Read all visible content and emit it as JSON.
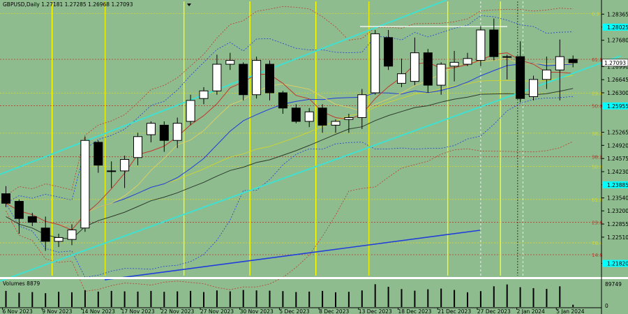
{
  "header": {
    "symbol_info": "GBPUSD,Daily  1.27181 1.27285 1.26968 1.27093"
  },
  "volume_panel": {
    "label": "Volumes 8879",
    "max_label": "89749",
    "zero_label": "0"
  },
  "colors": {
    "background": "#8fbc8f",
    "bull_body": "#ffffff",
    "bear_body": "#000000",
    "channel": "#40e0d0",
    "fib_red": "#c0392b",
    "fib_yellow": "#d8d820",
    "session_line": "#ffff00",
    "trend_blue": "#1f3ddb"
  },
  "chart_data": {
    "type": "candlestick",
    "symbol": "GBPUSD",
    "timeframe": "Daily",
    "ylim": [
      1.215,
      1.287
    ],
    "price_ticks": [
      "1.28365",
      "1.28025",
      "1.27680",
      "1.26990",
      "1.26645",
      "1.26300",
      "1.25955",
      "1.25265",
      "1.24920",
      "1.24575",
      "1.24230",
      "1.23885",
      "1.23540",
      "1.23200",
      "1.22855",
      "1.22510",
      "1.21820"
    ],
    "x_labels": [
      "6 Nov 2023",
      "9 Nov 2023",
      "14 Nov 2023",
      "17 Nov 2023",
      "22 Nov 2023",
      "27 Nov 2023",
      "30 Nov 2023",
      "5 Dec 2023",
      "8 Dec 2023",
      "13 Dec 2023",
      "18 Dec 2023",
      "21 Dec 2023",
      "27 Dec 2023",
      "2 Jan 2024",
      "5 Jan 2024"
    ],
    "current_price_label": "1.27093",
    "highlighted_levels": [
      "1.28025",
      "1.25955",
      "1.23885",
      "1.21820"
    ],
    "fib_levels": [
      {
        "label": "0.0",
        "price": 1.2838,
        "color": "yellow"
      },
      {
        "label": "61.8",
        "price": 1.2718,
        "color": "red"
      },
      {
        "label": "23.6",
        "price": 1.2629,
        "color": "yellow"
      },
      {
        "label": "50.0",
        "price": 1.2596,
        "color": "red"
      },
      {
        "label": "38.2",
        "price": 1.2524,
        "color": "yellow"
      },
      {
        "label": "38.2",
        "price": 1.2462,
        "color": "red"
      },
      {
        "label": "50.0",
        "price": 1.2437,
        "color": "yellow"
      },
      {
        "label": "61.8",
        "price": 1.235,
        "color": "yellow"
      },
      {
        "label": "23.6",
        "price": 1.229,
        "color": "red"
      },
      {
        "label": "76.4",
        "price": 1.2236,
        "color": "yellow"
      },
      {
        "label": "14.6",
        "price": 1.2205,
        "color": "red"
      }
    ],
    "candles": [
      {
        "o": 1.2365,
        "h": 1.2385,
        "l": 1.233,
        "c": 1.234
      },
      {
        "o": 1.2345,
        "h": 1.235,
        "l": 1.226,
        "c": 1.23
      },
      {
        "o": 1.2305,
        "h": 1.2315,
        "l": 1.228,
        "c": 1.229
      },
      {
        "o": 1.2275,
        "h": 1.2305,
        "l": 1.2215,
        "c": 1.224
      },
      {
        "o": 1.224,
        "h": 1.226,
        "l": 1.2225,
        "c": 1.225
      },
      {
        "o": 1.2245,
        "h": 1.2285,
        "l": 1.223,
        "c": 1.227
      },
      {
        "o": 1.2275,
        "h": 1.2515,
        "l": 1.2265,
        "c": 1.2505
      },
      {
        "o": 1.25,
        "h": 1.2505,
        "l": 1.242,
        "c": 1.244
      },
      {
        "o": 1.2425,
        "h": 1.245,
        "l": 1.238,
        "c": 1.2425
      },
      {
        "o": 1.2425,
        "h": 1.2465,
        "l": 1.238,
        "c": 1.2455
      },
      {
        "o": 1.246,
        "h": 1.2525,
        "l": 1.244,
        "c": 1.2515
      },
      {
        "o": 1.252,
        "h": 1.2555,
        "l": 1.25,
        "c": 1.255
      },
      {
        "o": 1.2545,
        "h": 1.2555,
        "l": 1.2475,
        "c": 1.2505
      },
      {
        "o": 1.2505,
        "h": 1.2565,
        "l": 1.2485,
        "c": 1.255
      },
      {
        "o": 1.2555,
        "h": 1.2625,
        "l": 1.2545,
        "c": 1.261
      },
      {
        "o": 1.2615,
        "h": 1.2645,
        "l": 1.26,
        "c": 1.2635
      },
      {
        "o": 1.2635,
        "h": 1.273,
        "l": 1.2625,
        "c": 1.2705
      },
      {
        "o": 1.2705,
        "h": 1.2735,
        "l": 1.269,
        "c": 1.2715
      },
      {
        "o": 1.2705,
        "h": 1.271,
        "l": 1.261,
        "c": 1.2625
      },
      {
        "o": 1.2625,
        "h": 1.2725,
        "l": 1.2615,
        "c": 1.2715
      },
      {
        "o": 1.2705,
        "h": 1.2715,
        "l": 1.261,
        "c": 1.263
      },
      {
        "o": 1.263,
        "h": 1.2635,
        "l": 1.2575,
        "c": 1.259
      },
      {
        "o": 1.259,
        "h": 1.26,
        "l": 1.255,
        "c": 1.2555
      },
      {
        "o": 1.2555,
        "h": 1.259,
        "l": 1.254,
        "c": 1.258
      },
      {
        "o": 1.259,
        "h": 1.26,
        "l": 1.2525,
        "c": 1.2545
      },
      {
        "o": 1.2545,
        "h": 1.256,
        "l": 1.2525,
        "c": 1.2555
      },
      {
        "o": 1.256,
        "h": 1.2575,
        "l": 1.2525,
        "c": 1.2565
      },
      {
        "o": 1.2565,
        "h": 1.264,
        "l": 1.2535,
        "c": 1.2625
      },
      {
        "o": 1.263,
        "h": 1.2795,
        "l": 1.2625,
        "c": 1.2785
      },
      {
        "o": 1.2775,
        "h": 1.2795,
        "l": 1.269,
        "c": 1.27
      },
      {
        "o": 1.2655,
        "h": 1.272,
        "l": 1.2645,
        "c": 1.268
      },
      {
        "o": 1.266,
        "h": 1.2775,
        "l": 1.265,
        "c": 1.2735
      },
      {
        "o": 1.2735,
        "h": 1.2745,
        "l": 1.263,
        "c": 1.265
      },
      {
        "o": 1.265,
        "h": 1.271,
        "l": 1.2625,
        "c": 1.2705
      },
      {
        "o": 1.27,
        "h": 1.274,
        "l": 1.266,
        "c": 1.271
      },
      {
        "o": 1.2705,
        "h": 1.2735,
        "l": 1.27,
        "c": 1.272
      },
      {
        "o": 1.2715,
        "h": 1.2805,
        "l": 1.27,
        "c": 1.2795
      },
      {
        "o": 1.2795,
        "h": 1.2825,
        "l": 1.2715,
        "c": 1.2725
      },
      {
        "o": 1.2725,
        "h": 1.273,
        "l": 1.2665,
        "c": 1.2725
      },
      {
        "o": 1.2725,
        "h": 1.2765,
        "l": 1.2605,
        "c": 1.2615
      },
      {
        "o": 1.262,
        "h": 1.2675,
        "l": 1.261,
        "c": 1.2665
      },
      {
        "o": 1.2665,
        "h": 1.2725,
        "l": 1.264,
        "c": 1.269
      },
      {
        "o": 1.269,
        "h": 1.277,
        "l": 1.261,
        "c": 1.2725
      },
      {
        "o": 1.2718,
        "h": 1.2728,
        "l": 1.2697,
        "c": 1.2709
      }
    ],
    "volumes": [
      0.7,
      0.62,
      0.65,
      0.6,
      0.66,
      0.64,
      0.73,
      0.67,
      0.7,
      0.68,
      0.67,
      0.7,
      0.66,
      0.68,
      0.7,
      0.65,
      0.72,
      0.68,
      0.74,
      0.72,
      0.71,
      0.69,
      0.65,
      0.67,
      0.7,
      0.64,
      0.66,
      0.72,
      0.99,
      0.88,
      0.78,
      0.71,
      0.77,
      0.8,
      0.74,
      0.64,
      0.69,
      0.9,
      0.98,
      0.86,
      0.82,
      0.79,
      0.9,
      0.1
    ]
  }
}
